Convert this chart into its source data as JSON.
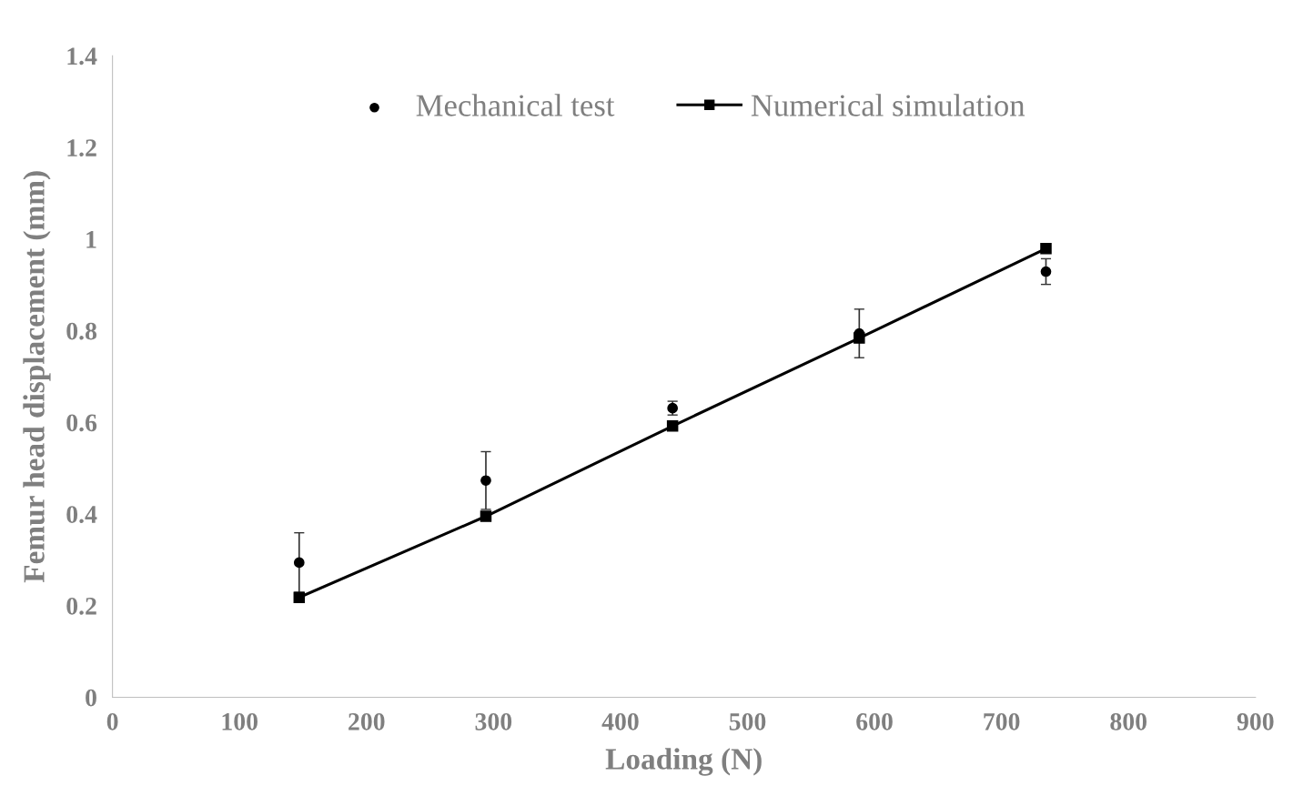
{
  "chart_data": {
    "type": "scatter",
    "xlabel": "Loading (N)",
    "ylabel": "Femur head displacement (mm)",
    "xlim": [
      0,
      900
    ],
    "xticks": [
      0,
      100,
      200,
      300,
      400,
      500,
      600,
      700,
      800,
      900
    ],
    "ylim": [
      0,
      1.4
    ],
    "yticks": [
      0,
      {
        "value": 0.2,
        "label": "0.2"
      },
      {
        "value": 0.4,
        "label": "0.4"
      },
      {
        "value": 0.6,
        "label": "0.6"
      },
      {
        "value": 0.8,
        "label": "0.8"
      },
      1,
      {
        "value": 1.2,
        "label": "1.2"
      },
      {
        "value": 1.4,
        "label": "1.4"
      }
    ],
    "grid": false,
    "legend": "top",
    "series": [
      {
        "name": "Mechanical test",
        "marker": "circle",
        "color": "#000000",
        "x": [
          147,
          294,
          441,
          588,
          735
        ],
        "values": [
          0.294,
          0.473,
          0.631,
          0.794,
          0.929
        ],
        "errors": [
          0.065,
          0.063,
          0.015,
          0.053,
          0.028
        ]
      },
      {
        "name": "Numerical simulation",
        "type": "line",
        "marker": "square",
        "line_style": "solid",
        "color": "#000000",
        "x": [
          147,
          294,
          441,
          588,
          735
        ],
        "values": [
          0.218,
          0.395,
          0.592,
          0.784,
          0.979
        ]
      }
    ]
  }
}
